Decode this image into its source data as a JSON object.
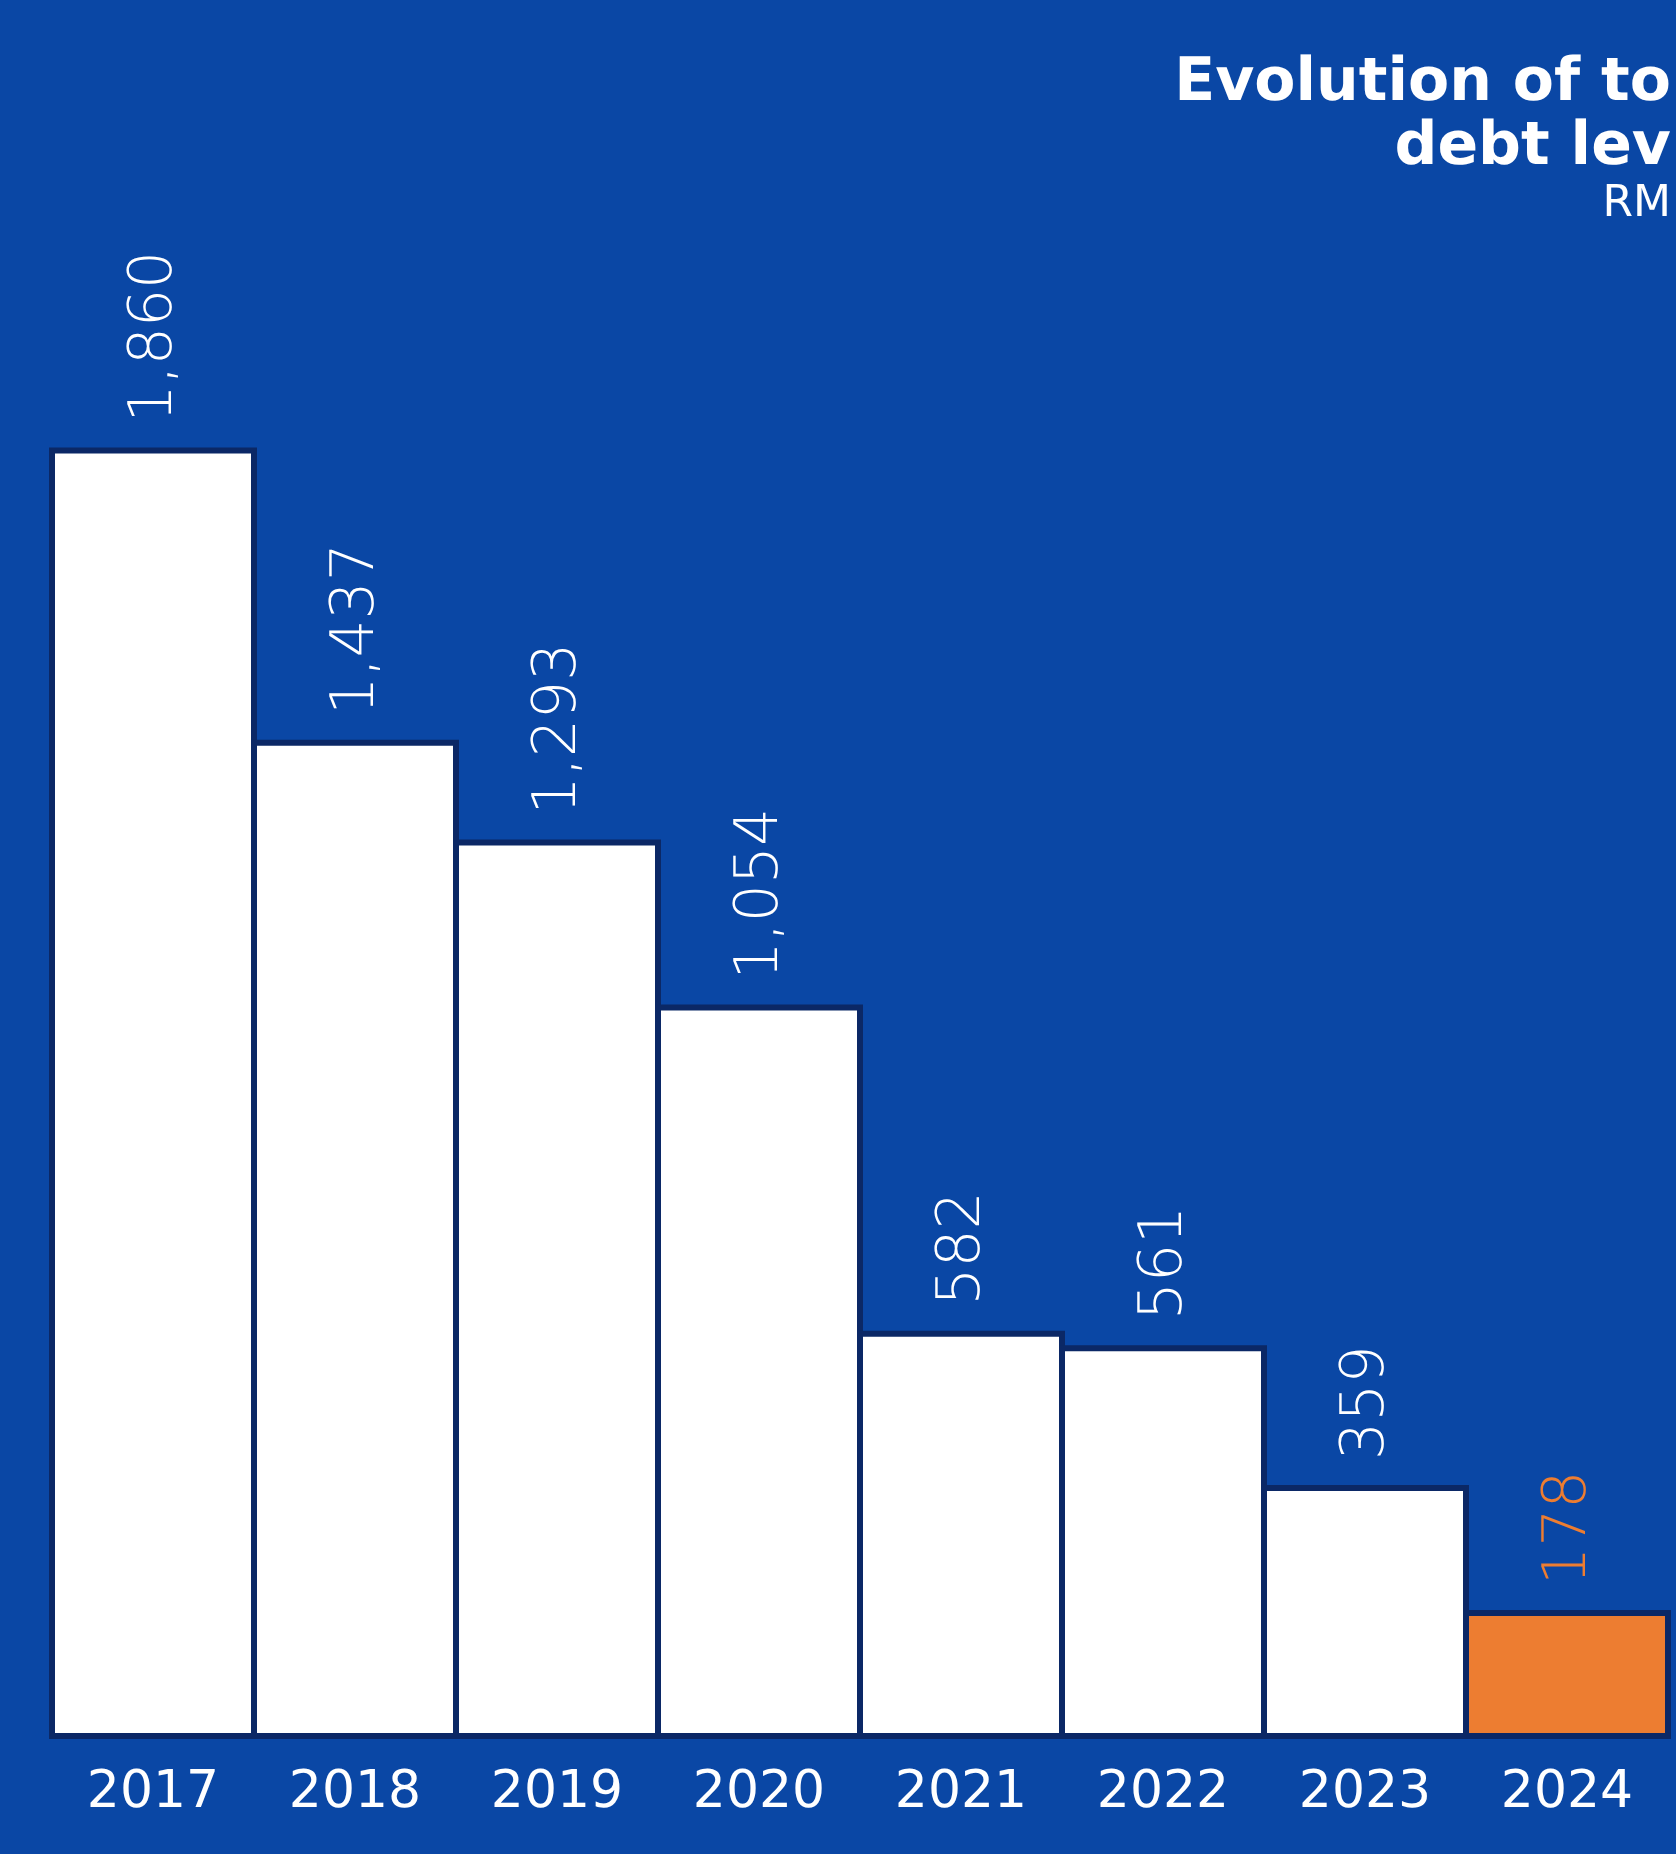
{
  "chart_data": {
    "type": "bar",
    "title": [
      "Evolution of to",
      "debt lev"
    ],
    "subtitle": "RM",
    "categories": [
      "2017",
      "2018",
      "2019",
      "2020",
      "2021",
      "2022",
      "2023",
      "2024"
    ],
    "values": [
      1860,
      1437,
      1293,
      1054,
      582,
      561,
      359,
      178
    ],
    "colors": [
      "#ffffff",
      "#ffffff",
      "#ffffff",
      "#ffffff",
      "#ffffff",
      "#ffffff",
      "#ffffff",
      "#ed7d31"
    ],
    "value_labels": [
      "1,860",
      "1,437",
      "1,293",
      "1,054",
      "582",
      "561",
      "359",
      "178"
    ],
    "tick_labels": "x",
    "grid": false
  }
}
